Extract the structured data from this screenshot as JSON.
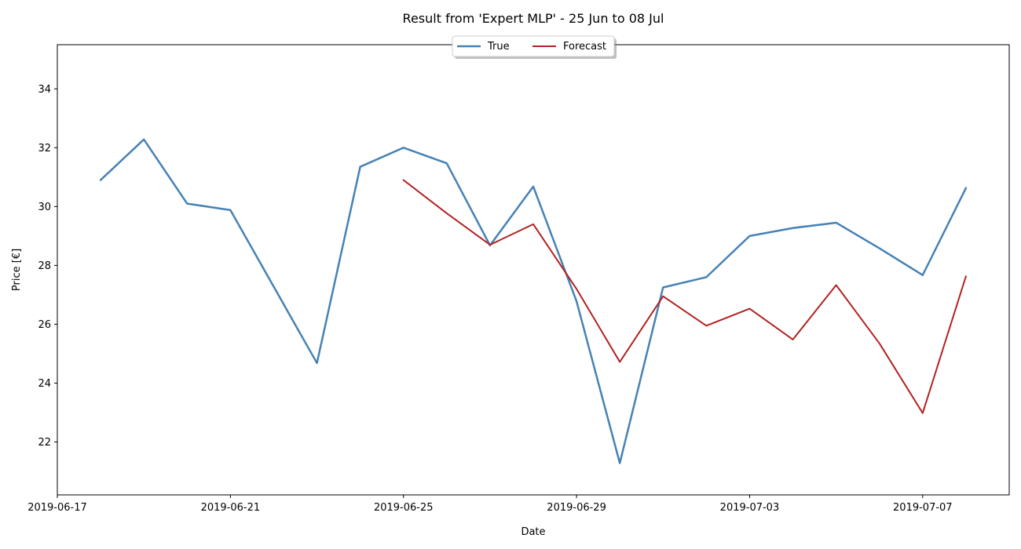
{
  "chart_data": {
    "type": "line",
    "title": "Result from 'Expert MLP' - 25 Jun to 08 Jul",
    "xlabel": "Date",
    "ylabel": "Price [€]",
    "xlim": [
      "2019-06-17",
      "2019-07-09"
    ],
    "ylim": [
      20.2,
      35.5
    ],
    "x_ticks": [
      "2019-06-17",
      "2019-06-21",
      "2019-06-25",
      "2019-06-29",
      "2019-07-03",
      "2019-07-07"
    ],
    "y_ticks": [
      22,
      24,
      26,
      28,
      30,
      32,
      34
    ],
    "grid": false,
    "legend": {
      "placement": "top-center",
      "columns": 2,
      "shadow": true
    },
    "series": [
      {
        "name": "True",
        "color": "#4682b4",
        "x": [
          "2019-06-18",
          "2019-06-19",
          "2019-06-20",
          "2019-06-21",
          "2019-06-22",
          "2019-06-23",
          "2019-06-24",
          "2019-06-25",
          "2019-06-26",
          "2019-06-27",
          "2019-06-28",
          "2019-06-29",
          "2019-06-30",
          "2019-07-01",
          "2019-07-02",
          "2019-07-03",
          "2019-07-04",
          "2019-07-05",
          "2019-07-06",
          "2019-07-07",
          "2019-07-08"
        ],
        "values": [
          30.9,
          32.28,
          30.1,
          29.88,
          27.28,
          24.68,
          31.35,
          32.0,
          31.47,
          28.68,
          30.68,
          26.78,
          21.28,
          27.25,
          27.6,
          29.0,
          29.27,
          29.45,
          28.58,
          27.67,
          30.63
        ]
      },
      {
        "name": "Forecast",
        "color": "#b22222",
        "x": [
          "2019-06-25",
          "2019-06-26",
          "2019-06-27",
          "2019-06-28",
          "2019-06-29",
          "2019-06-30",
          "2019-07-01",
          "2019-07-02",
          "2019-07-03",
          "2019-07-04",
          "2019-07-05",
          "2019-07-06",
          "2019-07-07",
          "2019-07-08"
        ],
        "values": [
          30.9,
          29.77,
          28.7,
          29.4,
          27.2,
          24.72,
          26.95,
          25.95,
          26.53,
          25.48,
          27.33,
          25.35,
          22.98,
          27.63
        ]
      }
    ]
  }
}
